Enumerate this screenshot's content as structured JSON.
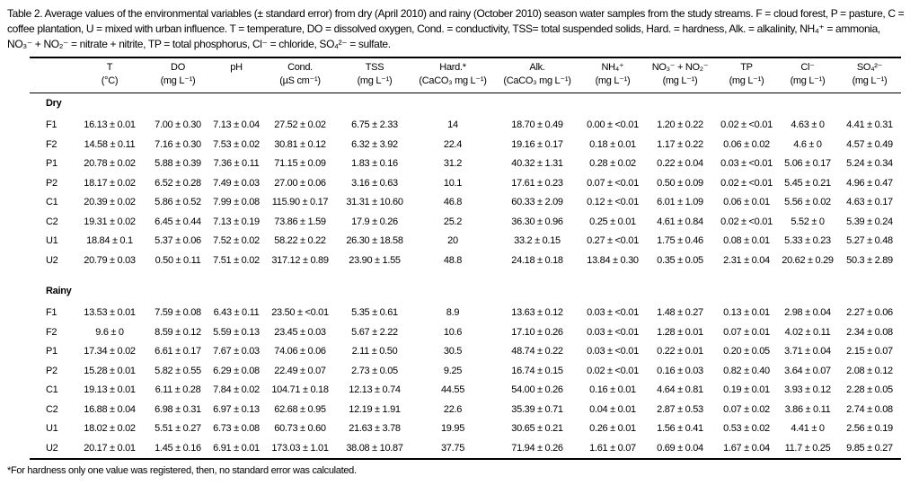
{
  "page": {
    "background_color": "#ffffff",
    "text_color": "#000000"
  },
  "caption": "Table 2. Average values of the environmental variables (± standard error) from dry (April 2010) and rainy (October 2010) season water samples from the study streams. F = cloud forest, P = pasture, C = coffee plantation, U = mixed with urban influence. T = temperature, DO = dissolved oxygen, Cond. = conductivity, TSS= total suspended solids, Hard. = hardness, Alk. = alkalinity, NH₄⁺ = ammonia, NO₃⁻ + NO₂⁻ = nitrate + nitrite, TP = total phosphorus, Cl⁻ = chloride, SO₄²⁻ = sulfate.",
  "table": {
    "columns": [
      {
        "label": "T",
        "units": "(°C)"
      },
      {
        "label": "DO",
        "units": "(mg L⁻¹)"
      },
      {
        "label": "pH",
        "units": ""
      },
      {
        "label": "Cond.",
        "units": "(µS cm⁻¹)"
      },
      {
        "label": "TSS",
        "units": "(mg L⁻¹)"
      },
      {
        "label": "Hard.*",
        "units": "(CaCO₃ mg L⁻¹)"
      },
      {
        "label": "Alk.",
        "units": "(CaCO₃ mg L⁻¹)"
      },
      {
        "label": "NH₄⁺",
        "units": "(mg L⁻¹)"
      },
      {
        "label": "NO₃⁻ + NO₂⁻",
        "units": "(mg L⁻¹)"
      },
      {
        "label": "TP",
        "units": "(mg L⁻¹)"
      },
      {
        "label": "Cl⁻",
        "units": "(mg L⁻¹)"
      },
      {
        "label": "SO₄²⁻",
        "units": "(mg L⁻¹)"
      }
    ],
    "sections": [
      {
        "label": "Dry",
        "rows": [
          {
            "id": "F1",
            "values": [
              "16.13 ± 0.01",
              "7.00 ± 0.30",
              "7.13 ± 0.04",
              "27.52 ± 0.02",
              "6.75 ± 2.33",
              "14",
              "18.70 ± 0.49",
              "0.00 ± <0.01",
              "1.20 ± 0.22",
              "0.02 ± <0.01",
              "4.63 ± 0",
              "4.41 ± 0.31"
            ]
          },
          {
            "id": "F2",
            "values": [
              "14.58 ± 0.11",
              "7.16 ± 0.30",
              "7.53 ± 0.02",
              "30.81 ± 0.12",
              "6.32 ± 3.92",
              "22.4",
              "19.16 ± 0.17",
              "0.18 ± 0.01",
              "1.17 ± 0.22",
              "0.06 ± 0.02",
              "4.6 ± 0",
              "4.57 ± 0.49"
            ]
          },
          {
            "id": "P1",
            "values": [
              "20.78 ± 0.02",
              "5.88 ± 0.39",
              "7.36 ± 0.11",
              "71.15 ± 0.09",
              "1.83 ± 0.16",
              "31.2",
              "40.32 ± 1.31",
              "0.28 ± 0.02",
              "0.22 ± 0.04",
              "0.03 ± <0.01",
              "5.06 ± 0.17",
              "5.24 ± 0.34"
            ]
          },
          {
            "id": "P2",
            "values": [
              "18.17 ± 0.02",
              "6.52 ± 0.28",
              "7.49 ± 0.03",
              "27.00 ± 0.06",
              "3.16 ± 0.63",
              "10.1",
              "17.61 ± 0.23",
              "0.07 ± <0.01",
              "0.50 ± 0.09",
              "0.02 ± <0.01",
              "5.45 ± 0.21",
              "4.96 ± 0.47"
            ]
          },
          {
            "id": "C1",
            "values": [
              "20.39 ± 0.02",
              "5.86 ± 0.52",
              "7.99 ± 0.08",
              "115.90 ± 0.17",
              "31.31 ± 10.60",
              "46.8",
              "60.33 ± 2.09",
              "0.12 ± <0.01",
              "6.01 ± 1.09",
              "0.06 ± 0.01",
              "5.56 ± 0.02",
              "4.63 ± 0.17"
            ]
          },
          {
            "id": "C2",
            "values": [
              "19.31 ± 0.02",
              "6.45 ± 0.44",
              "7.13 ± 0.19",
              "73.86 ± 1.59",
              "17.9 ± 0.26",
              "25.2",
              "36.30 ± 0.96",
              "0.25 ± 0.01",
              "4.61 ± 0.84",
              "0.02 ± <0.01",
              "5.52 ± 0",
              "5.39 ± 0.24"
            ]
          },
          {
            "id": "U1",
            "values": [
              "18.84 ± 0.1",
              "5.37 ± 0.06",
              "7.52 ± 0.02",
              "58.22 ± 0.22",
              "26.30 ± 18.58",
              "20",
              "33.2 ± 0.15",
              "0.27 ± <0.01",
              "1.75 ± 0.46",
              "0.08 ± 0.01",
              "5.33 ± 0.23",
              "5.27 ± 0.48"
            ]
          },
          {
            "id": "U2",
            "values": [
              "20.79 ± 0.03",
              "0.50 ± 0.11",
              "7.51 ± 0.02",
              "317.12 ± 0.89",
              "23.90 ± 1.55",
              "48.8",
              "24.18 ± 0.18",
              "13.84 ± 0.30",
              "0.35 ± 0.05",
              "2.31 ± 0.04",
              "20.62 ± 0.29",
              "50.3 ± 2.89"
            ]
          }
        ]
      },
      {
        "label": "Rainy",
        "rows": [
          {
            "id": "F1",
            "values": [
              "13.53 ± 0.01",
              "7.59 ± 0.08",
              "6.43 ± 0.11",
              "23.50 ± <0.01",
              "5.35 ± 0.61",
              "8.9",
              "13.63 ± 0.12",
              "0.03 ± <0.01",
              "1.48 ± 0.27",
              "0.13 ± 0.01",
              "2.98 ± 0.04",
              "2.27 ± 0.06"
            ]
          },
          {
            "id": "F2",
            "values": [
              "9.6 ± 0",
              "8.59 ± 0.12",
              "5.59 ± 0.13",
              "23.45 ± 0.03",
              "5.67 ± 2.22",
              "10.6",
              "17.10 ± 0.26",
              "0.03 ± <0.01",
              "1.28 ± 0.01",
              "0.07 ± 0.01",
              "4.02 ± 0.11",
              "2.34 ± 0.08"
            ]
          },
          {
            "id": "P1",
            "values": [
              "17.34 ± 0.02",
              "6.61 ± 0.17",
              "7.67 ± 0.03",
              "74.06 ± 0.06",
              "2.11 ± 0.50",
              "30.5",
              "48.74 ± 0.22",
              "0.03 ± <0.01",
              "0.22 ± 0.01",
              "0.20 ± 0.05",
              "3.71 ± 0.04",
              "2.15 ± 0.07"
            ]
          },
          {
            "id": "P2",
            "values": [
              "15.28 ± 0.01",
              "5.82 ± 0.55",
              "6.29 ± 0.08",
              "22.49 ± 0.07",
              "2.73 ± 0.05",
              "9.25",
              "16.74 ± 0.15",
              "0.02 ± <0.01",
              "0.16 ± 0.03",
              "0.82 ± 0.40",
              "3.64 ± 0.07",
              "2.08 ± 0.12"
            ]
          },
          {
            "id": "C1",
            "values": [
              "19.13 ± 0.01",
              "6.11 ± 0.28",
              "7.84 ± 0.02",
              "104.71 ± 0.18",
              "12.13 ± 0.74",
              "44.55",
              "54.00 ± 0.26",
              "0.16 ± 0.01",
              "4.64 ± 0.81",
              "0.19 ± 0.01",
              "3.93 ± 0.12",
              "2.28 ± 0.05"
            ]
          },
          {
            "id": "C2",
            "values": [
              "16.88 ± 0.04",
              "6.98 ± 0.31",
              "6.97 ± 0.13",
              "62.68 ± 0.95",
              "12.19 ± 1.91",
              "22.6",
              "35.39 ± 0.71",
              "0.04 ± 0.01",
              "2.87 ± 0.53",
              "0.07 ± 0.02",
              "3.86 ± 0.11",
              "2.74 ± 0.08"
            ]
          },
          {
            "id": "U1",
            "values": [
              "18.02 ± 0.02",
              "5.51 ± 0.27",
              "6.73 ± 0.08",
              "60.73 ± 0.60",
              "21.63 ± 3.78",
              "19.95",
              "30.65 ± 0.21",
              "0.26 ± 0.01",
              "1.56 ± 0.41",
              "0.53 ± 0.02",
              "4.41 ± 0",
              "2.56 ± 0.19"
            ]
          },
          {
            "id": "U2",
            "values": [
              "20.17 ± 0.01",
              "1.45 ± 0.16",
              "6.91 ± 0.01",
              "173.03 ± 1.01",
              "38.08 ± 10.87",
              "37.75",
              "71.94 ± 0.26",
              "1.61 ± 0.07",
              "0.69 ± 0.04",
              "1.67 ± 0.04",
              "11.7 ± 0.25",
              "9.85 ± 0.27"
            ]
          }
        ]
      }
    ]
  },
  "footnote": "*For hardness only one value was registered, then, no standard error was calculated."
}
